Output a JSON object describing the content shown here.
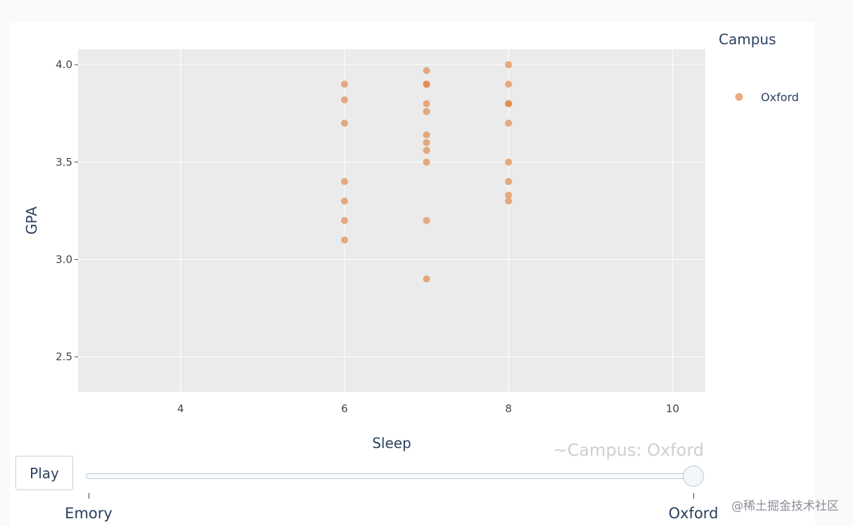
{
  "chart_data": {
    "type": "scatter",
    "title": "",
    "xlabel": "Sleep",
    "ylabel": "GPA",
    "xlim": [
      2.75,
      10.4
    ],
    "ylim": [
      2.32,
      4.08
    ],
    "xticks": [
      4,
      6,
      8,
      10
    ],
    "yticks": [
      2.5,
      3.0,
      3.5,
      4.0
    ],
    "xtick_labels": [
      "4",
      "6",
      "8",
      "10"
    ],
    "ytick_labels": [
      "2.5",
      "3.0",
      "3.5",
      "4.0"
    ],
    "grid": true,
    "legend": {
      "title": "Campus",
      "placement": "right"
    },
    "series": [
      {
        "name": "Oxford",
        "color": "#E08D50",
        "points": [
          [
            6,
            3.9
          ],
          [
            6,
            3.82
          ],
          [
            6,
            3.7
          ],
          [
            6,
            3.4
          ],
          [
            6,
            3.3
          ],
          [
            6,
            3.2
          ],
          [
            6,
            3.1
          ],
          [
            7,
            3.97
          ],
          [
            7,
            3.9
          ],
          [
            7,
            3.9
          ],
          [
            7,
            3.9
          ],
          [
            7,
            3.8
          ],
          [
            7,
            3.76
          ],
          [
            7,
            3.64
          ],
          [
            7,
            3.6
          ],
          [
            7,
            3.56
          ],
          [
            7,
            3.5
          ],
          [
            7,
            3.2
          ],
          [
            7,
            2.9
          ],
          [
            8,
            4.0
          ],
          [
            8,
            3.9
          ],
          [
            8,
            3.8
          ],
          [
            8,
            3.8
          ],
          [
            8,
            3.8
          ],
          [
            8,
            3.7
          ],
          [
            8,
            3.5
          ],
          [
            8,
            3.4
          ],
          [
            8,
            3.33
          ],
          [
            8,
            3.3
          ]
        ]
      }
    ]
  },
  "controls": {
    "play_label": "Play",
    "current_value": "~Campus: Oxford",
    "steps": [
      "Emory",
      "Oxford"
    ],
    "active_step": 1
  },
  "watermark": "@稀土掘金技术社区"
}
